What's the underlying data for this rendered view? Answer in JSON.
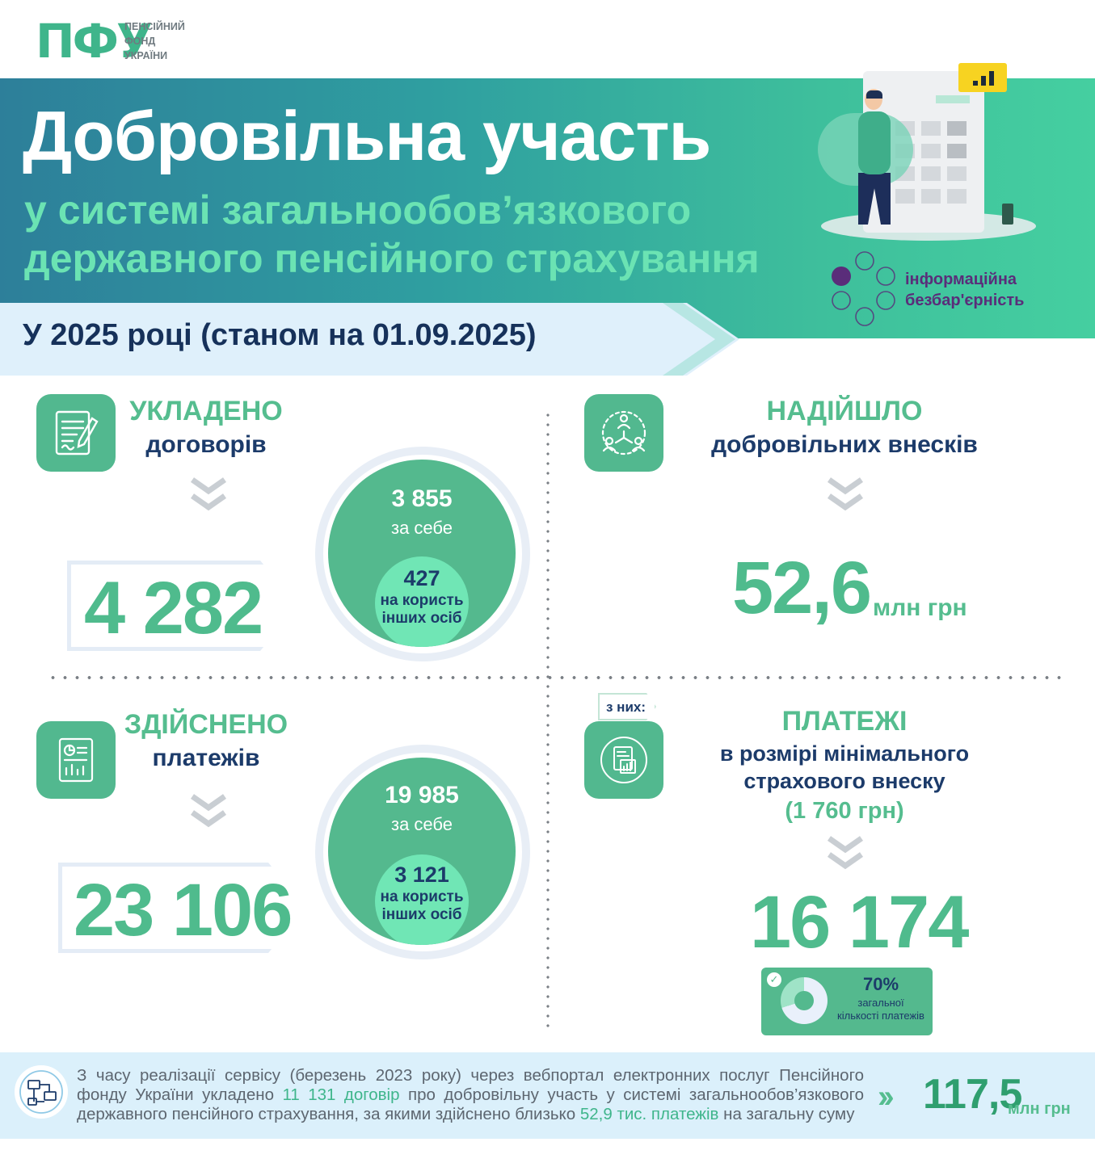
{
  "header": {
    "logo_mark": "ПФУ",
    "logo_line1": "ПЕНСІЙНИЙ",
    "logo_line2": "ФОНД",
    "logo_line3": "УКРАЇНИ",
    "title": "Добровільна участь",
    "subtitle_line1": "у системі загальнообов’язкового",
    "subtitle_line2": "державного пенсійного страхування",
    "badge_line1": "інформаційна",
    "badge_line2": "безбар'єрність",
    "date_label": "У 2025 році (станом на 01.09.2025)"
  },
  "contracts": {
    "head_green": "УКЛАДЕНО",
    "head_blue": "договорів",
    "total": "4 282",
    "self_value": "3 855",
    "self_label": "за себе",
    "others_value": "427",
    "others_label1": "на користь",
    "others_label2": "інших осіб"
  },
  "contributions": {
    "head_green": "НАДІЙШЛО",
    "head_blue": "добровільних внесків",
    "value": "52,6",
    "unit": "млн грн"
  },
  "payments": {
    "head_green": "ЗДІЙСНЕНО",
    "head_blue": "платежів",
    "total": "23 106",
    "self_value": "19 985",
    "self_label": "за себе",
    "others_value": "3 121",
    "others_label1": "на користь",
    "others_label2": "інших осіб"
  },
  "min_payments": {
    "tag": "з них:",
    "head_green": "ПЛАТЕЖІ",
    "head_blue1": "в розмірі мінімального",
    "head_blue2": "страхового внеску",
    "amount_note": "(1 760 грн)",
    "value": "16 174",
    "percent": "70%",
    "percent_label1": "загальної",
    "percent_label2": "кількості платежів",
    "percent_fraction": 0.7
  },
  "footer": {
    "text_part1": "З часу реалізації сервісу (березень 2023 року) через вебпортал електронних послуг Пенсійного фонду України укладено ",
    "highlight1": "11 131 договір",
    "text_part2": " про добровільну участь у системі загальнообов’язкового державного пенсійного страхування, за якими здійснено близько ",
    "highlight2": "52,9 тис. платежів",
    "text_part3": " на загальну суму",
    "total_value": "117,5",
    "total_unit": "млн грн"
  },
  "colors": {
    "brand_green": "#55bd8f",
    "navy": "#1c3b6a",
    "banner_start": "#2d7f9a",
    "banner_end": "#45cfa0",
    "light_blue": "#dbf0fb",
    "purple": "#5a2d7a"
  },
  "icons": {
    "contracts": "contract-document-icon",
    "contributions": "people-network-icon",
    "payments": "report-chart-icon",
    "min_payments": "document-chart-circle-icon",
    "footer": "flowchart-icon",
    "chevron": "double-chevron-down-icon"
  }
}
